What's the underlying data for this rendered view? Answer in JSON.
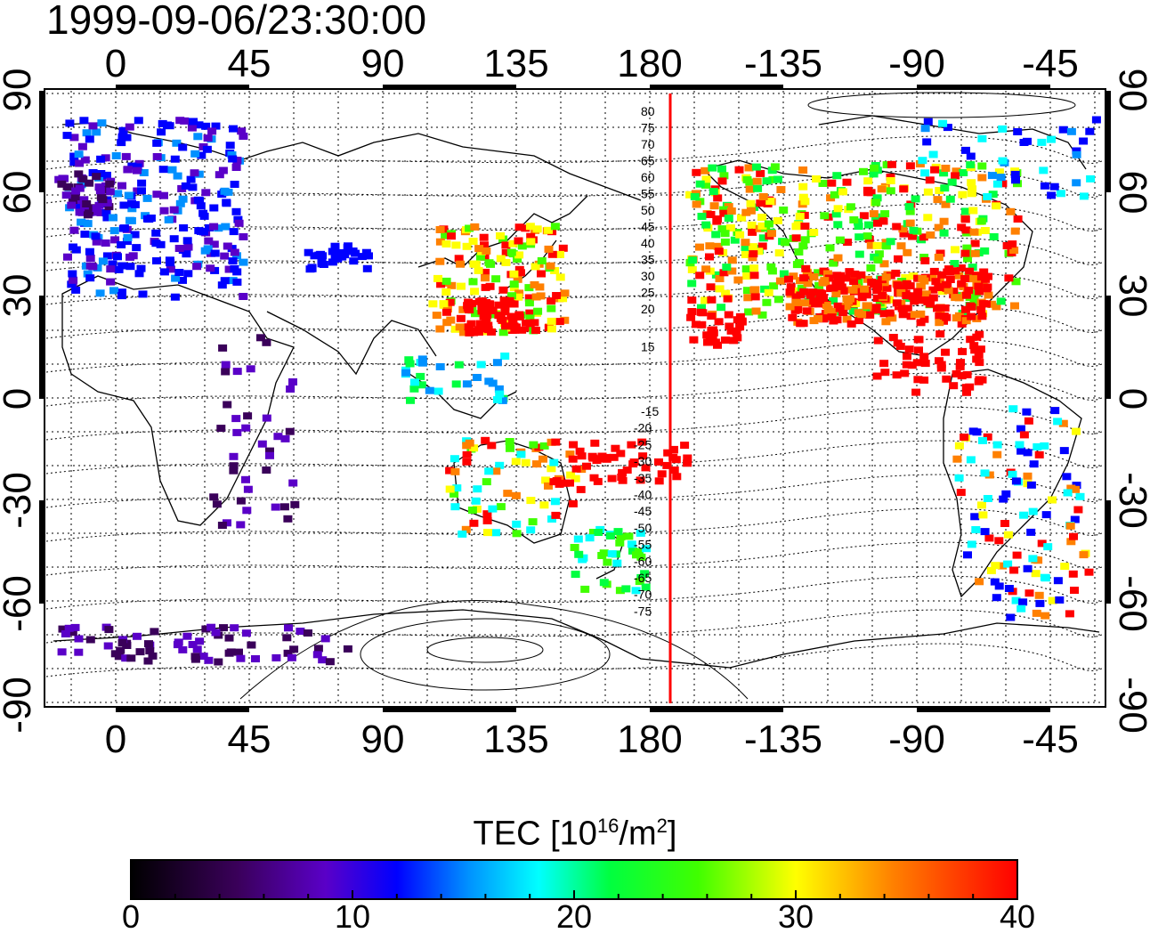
{
  "title": "1999-09-06/23:30:00",
  "x_ticks": [
    "0",
    "45",
    "90",
    "135",
    "180",
    "-135",
    "-90",
    "-45"
  ],
  "y_ticks": [
    "90",
    "60",
    "30",
    "0",
    "-30",
    "-60",
    "-90"
  ],
  "mlat_labels_north": [
    "80",
    "75",
    "70",
    "65",
    "60",
    "55",
    "50",
    "45",
    "40",
    "35",
    "30",
    "25",
    "20",
    "15"
  ],
  "mlat_labels_south": [
    "-15",
    "-20",
    "-25",
    "-30",
    "-35",
    "-40",
    "-45",
    "-50",
    "-55",
    "-60",
    "-65",
    "-70",
    "-75"
  ],
  "colorbar": {
    "label_prefix": "TEC  [10",
    "label_exp1": "16",
    "label_mid": "/m",
    "label_exp2": "2",
    "label_suffix": "]",
    "ticks": [
      "0",
      "10",
      "20",
      "30",
      "40"
    ],
    "range": [
      0,
      40
    ]
  },
  "colors": {
    "terminator": "#ff0000",
    "scale": [
      "#000000",
      "#3a005a",
      "#5a00c8",
      "#0000ff",
      "#0090ff",
      "#00ffff",
      "#00ff40",
      "#40ff00",
      "#ffff00",
      "#ff8000",
      "#ff0000"
    ]
  }
}
